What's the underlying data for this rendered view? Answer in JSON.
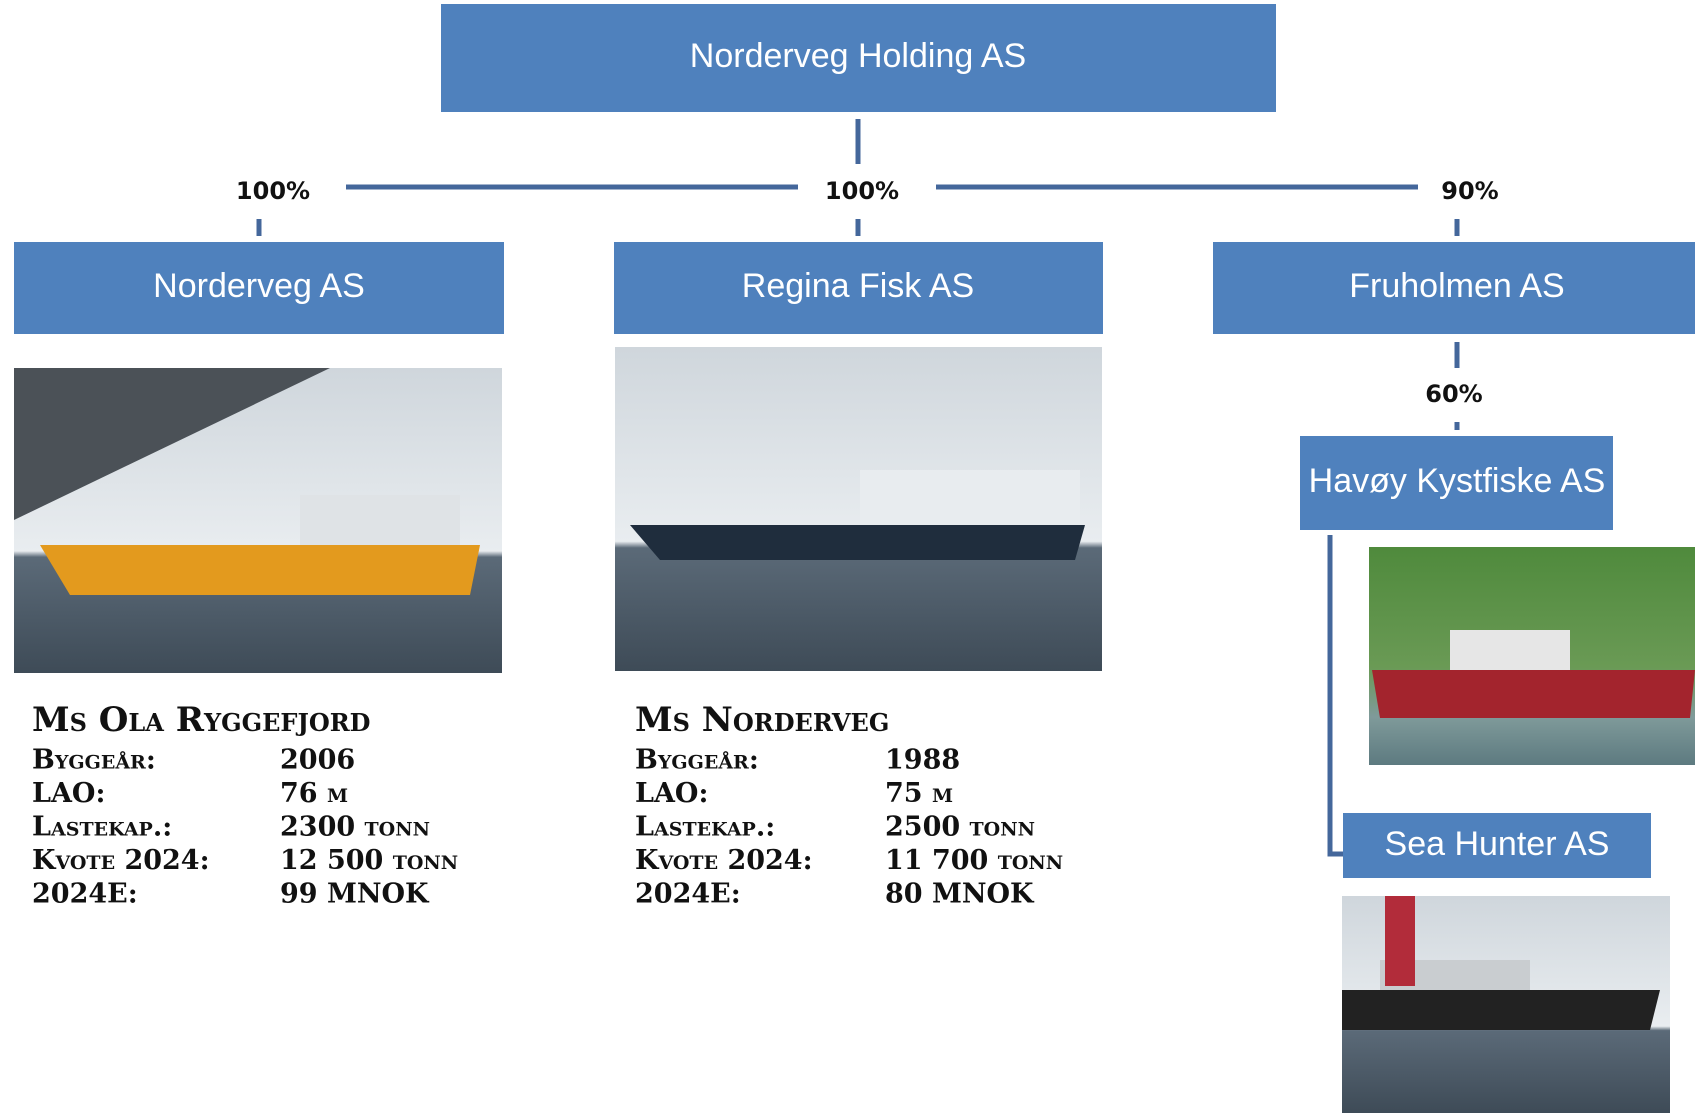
{
  "root": {
    "label": "Norderveg Holding AS"
  },
  "companies": [
    {
      "label": "Norderveg AS",
      "ownership": "100%"
    },
    {
      "label": "Regina Fisk AS",
      "ownership": "100%"
    },
    {
      "label": "Fruholmen AS",
      "ownership": "90%"
    },
    {
      "label": "Havøy Kystfiske AS",
      "ownership": "60%"
    },
    {
      "label": "Sea Hunter AS"
    }
  ],
  "vessels": [
    {
      "name": "Ms Ola Ryggefjord",
      "rows": [
        [
          "Byggeår:",
          "2006"
        ],
        [
          "LAO:",
          "76 m"
        ],
        [
          "Lastekap.:",
          "2300 tonn"
        ],
        [
          "Kvote 2024:",
          "12 500 tonn"
        ],
        [
          "2024E:",
          "99 MNOK"
        ]
      ]
    },
    {
      "name": "Ms Norderveg",
      "rows": [
        [
          "Byggeår:",
          "1988"
        ],
        [
          "LAO:",
          "75 m"
        ],
        [
          "Lastekap.:",
          "2500 tonn"
        ],
        [
          "Kvote 2024:",
          "11 700 tonn"
        ],
        [
          "2024E:",
          "80 MNOK"
        ]
      ]
    }
  ]
}
